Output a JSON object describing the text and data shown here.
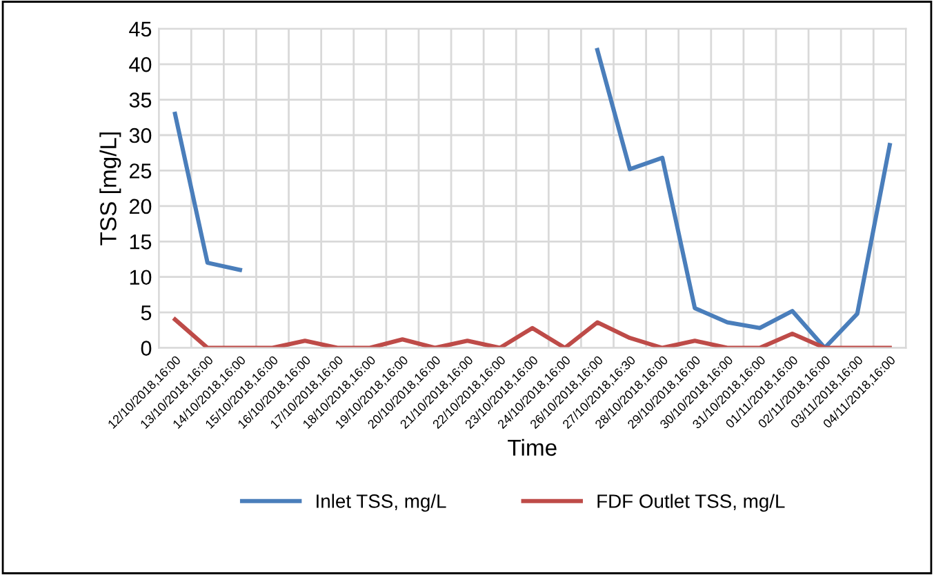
{
  "chart_data": {
    "type": "line",
    "xlabel": "Time",
    "ylabel": "TSS [mg/L]",
    "categories": [
      "12/10/2018,16:00",
      "13/10/2018,16:00",
      "14/10/2018,16:00",
      "15/10/2018,16:00",
      "16/10/2018,16:00",
      "17/10/2018,16:00",
      "18/10/2018,16:00",
      "19/10/2018,16:00",
      "20/10/2018,16:00",
      "21/10/2018,16:00",
      "22/10/2018,16:00",
      "23/10/2018,16:00",
      "24/10/2018,16:00",
      "26/10/2018,16:00",
      "27/10/2018,16:30",
      "28/10/2018,16:00",
      "29/10/2018,16:00",
      "30/10/2018,16:00",
      "31/10/2018,16:00",
      "01/11/2018,16:00",
      "02/11/2018,16:00",
      "03/11/2018,16:00",
      "04/11/2018,16:00"
    ],
    "series": [
      {
        "name": "Inlet TSS, mg/L",
        "color": "#4a7ebb",
        "values": [
          33,
          12,
          11,
          null,
          null,
          null,
          null,
          null,
          null,
          null,
          null,
          null,
          null,
          42,
          25.2,
          26.8,
          5.6,
          3.6,
          2.8,
          5.2,
          0,
          4.8,
          28.6
        ]
      },
      {
        "name": "FDF Outlet TSS, mg/L",
        "color": "#be4b48",
        "values": [
          4,
          0,
          0,
          0,
          1,
          0,
          0,
          1.2,
          0,
          1,
          0,
          2.8,
          0,
          3.6,
          1.4,
          0,
          1,
          0,
          0,
          2,
          0,
          0,
          0
        ]
      }
    ],
    "ylim": [
      0,
      45
    ],
    "yticks": [
      0,
      5,
      10,
      15,
      20,
      25,
      30,
      35,
      40,
      45
    ],
    "grid": true,
    "legend": "bottom",
    "marker": "none",
    "line_style": "solid"
  }
}
